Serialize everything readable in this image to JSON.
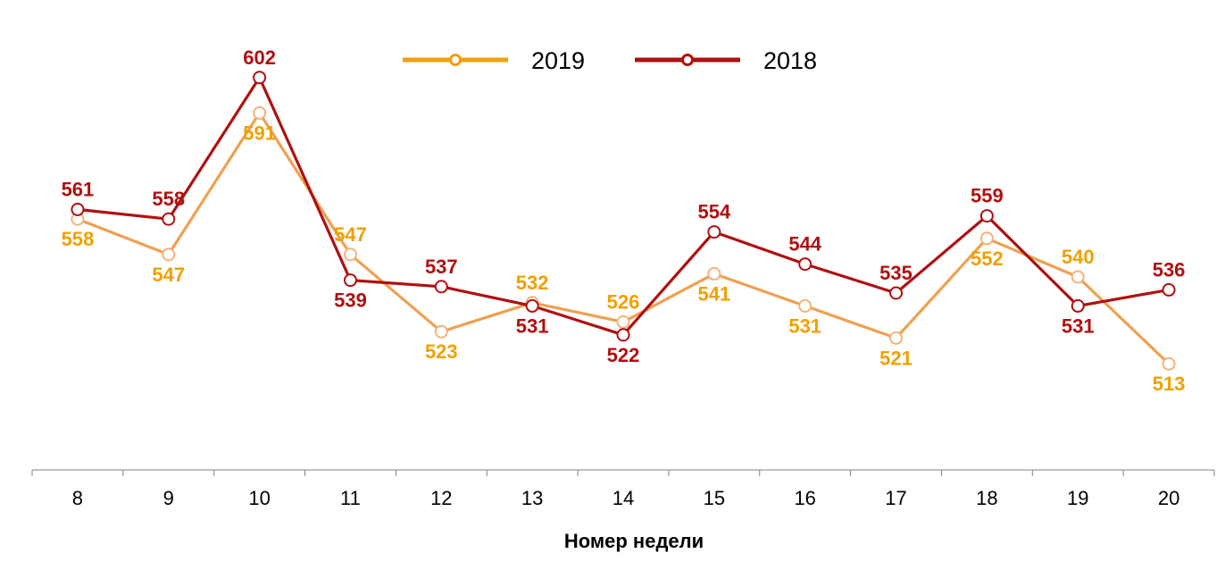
{
  "chart_data": {
    "type": "line",
    "title": "",
    "xlabel": "Номер недели",
    "ylabel": "",
    "categories": [
      "8",
      "9",
      "10",
      "11",
      "12",
      "13",
      "14",
      "15",
      "16",
      "17",
      "18",
      "19",
      "20"
    ],
    "ylim": [
      480,
      615
    ],
    "grid": false,
    "legend_position": "top-center",
    "series": [
      {
        "name": "2019",
        "color": "#F0A050",
        "marker_color": "#F5B27A",
        "label_color": "#F0A000",
        "legend_color": "#F0A000",
        "values": [
          558,
          547,
          591,
          547,
          523,
          532,
          526,
          541,
          531,
          521,
          552,
          540,
          513
        ],
        "label_positions": [
          "below",
          "below",
          "below",
          "above",
          "below",
          "above",
          "above",
          "below",
          "below",
          "below",
          "below",
          "above",
          "below"
        ]
      },
      {
        "name": "2018",
        "color": "#B01010",
        "marker_color": "#B01010",
        "label_color": "#B01010",
        "legend_color": "#B01010",
        "values": [
          561,
          558,
          602,
          539,
          537,
          531,
          522,
          554,
          544,
          535,
          559,
          531,
          536
        ],
        "label_positions": [
          "above",
          "above",
          "above",
          "below",
          "above",
          "below",
          "below",
          "above",
          "above",
          "above",
          "above",
          "below",
          "above"
        ]
      }
    ]
  }
}
